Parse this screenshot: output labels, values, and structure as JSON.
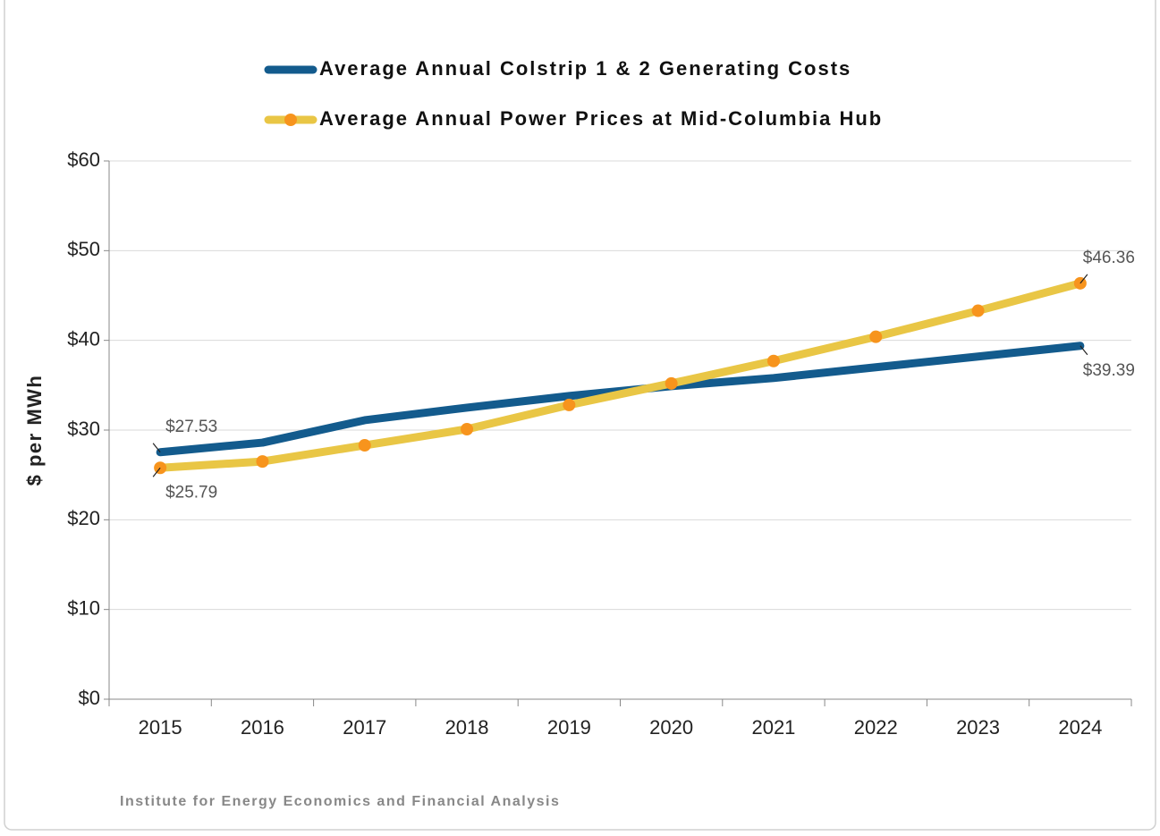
{
  "chart_data": {
    "type": "line",
    "y_label": "$ per MWh",
    "footer": "Institute for Energy Economics and Financial Analysis",
    "categories": [
      "2015",
      "2016",
      "2017",
      "2018",
      "2019",
      "2020",
      "2021",
      "2022",
      "2023",
      "2024"
    ],
    "series": [
      {
        "name": "Average Annual Colstrip 1 & 2 Generating Costs",
        "color": "#135b8d",
        "marker": false,
        "values": [
          27.53,
          28.6,
          31.1,
          32.5,
          33.8,
          34.9,
          35.8,
          37.0,
          38.2,
          39.39
        ],
        "value_labels": [
          "$27.53",
          null,
          null,
          null,
          null,
          null,
          null,
          null,
          null,
          "$39.39"
        ]
      },
      {
        "name": "Average Annual Power Prices at Mid-Columbia Hub",
        "color": "#e9c645",
        "marker_color": "#f7941d",
        "marker": true,
        "values": [
          25.79,
          26.5,
          28.3,
          30.1,
          32.8,
          35.2,
          37.7,
          40.4,
          43.3,
          46.36
        ],
        "value_labels": [
          "$25.79",
          null,
          null,
          null,
          null,
          null,
          null,
          null,
          null,
          "$46.36"
        ]
      }
    ],
    "ylim": [
      0,
      60
    ],
    "yticks": [
      {
        "value": 0,
        "label": "$0"
      },
      {
        "value": 10,
        "label": "$10"
      },
      {
        "value": 20,
        "label": "$20"
      },
      {
        "value": 30,
        "label": "$30"
      },
      {
        "value": 40,
        "label": "$40"
      },
      {
        "value": 50,
        "label": "$50"
      },
      {
        "value": 60,
        "label": "$60"
      }
    ],
    "grid": true,
    "legend": "top"
  }
}
